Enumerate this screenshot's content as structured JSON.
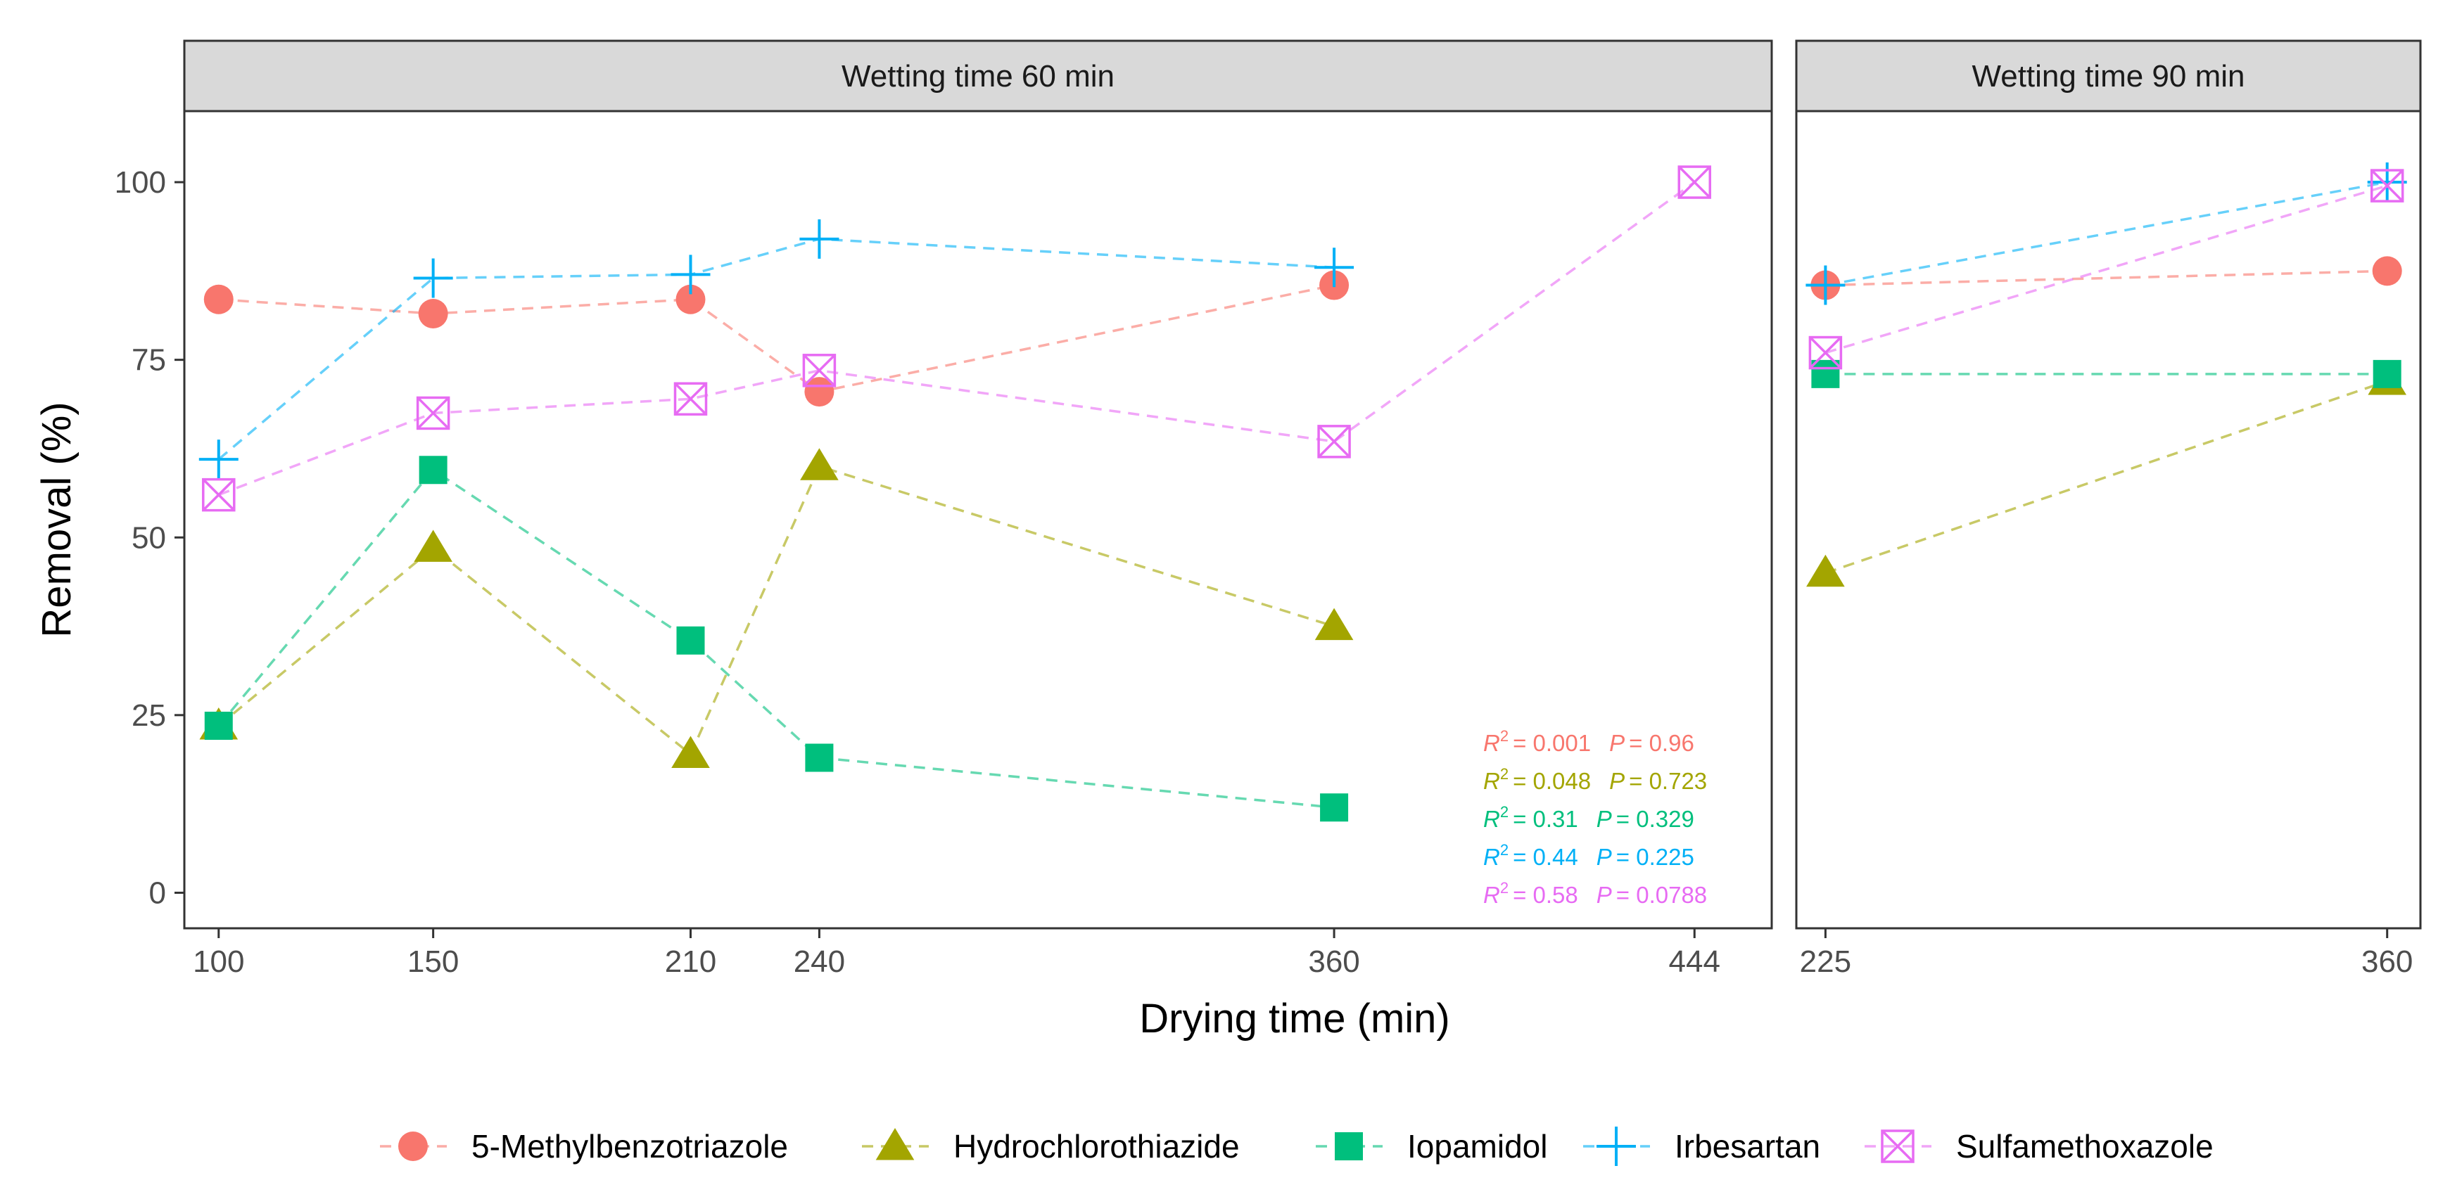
{
  "chart_data": {
    "type": "line",
    "xlabel": "Drying time (min)",
    "ylabel": "Removal (%)",
    "ylim": [
      -5,
      110
    ],
    "yticks": [
      0,
      25,
      50,
      75,
      100
    ],
    "grid": false,
    "legend_position": "bottom",
    "series_styles": [
      {
        "name": "5-Methylbenzotriazole",
        "color": "#F8766D",
        "marker": "circle"
      },
      {
        "name": "Hydrochlorothiazide",
        "color": "#A3A500",
        "marker": "triangle"
      },
      {
        "name": "Iopamidol",
        "color": "#00BF7D",
        "marker": "square"
      },
      {
        "name": "Irbesartan",
        "color": "#00B0F6",
        "marker": "plus"
      },
      {
        "name": "Sulfamethoxazole",
        "color": "#E76BF3",
        "marker": "boxx"
      }
    ],
    "panels": [
      {
        "title": "Wetting time 60 min",
        "xlim": [
          92,
          462
        ],
        "xticks": [
          100,
          150,
          210,
          240,
          360,
          444
        ],
        "series": [
          {
            "name": "5-Methylbenzotriazole",
            "x": [
              100,
              150,
              210,
              240,
              360
            ],
            "values": [
              83.5,
              81.5,
              83.5,
              70.5,
              85.5
            ]
          },
          {
            "name": "Hydrochlorothiazide",
            "x": [
              100,
              150,
              210,
              240,
              360
            ],
            "values": [
              23.5,
              48.5,
              19.5,
              60,
              37.5
            ]
          },
          {
            "name": "Iopamidol",
            "x": [
              100,
              150,
              210,
              240,
              360
            ],
            "values": [
              23.5,
              59.5,
              35.5,
              19,
              12
            ]
          },
          {
            "name": "Irbesartan",
            "x": [
              100,
              150,
              210,
              240,
              360
            ],
            "values": [
              61,
              86.5,
              87,
              92,
              88
            ]
          },
          {
            "name": "Sulfamethoxazole",
            "x": [
              100,
              150,
              210,
              240,
              360,
              444
            ],
            "values": [
              56,
              67.5,
              69.5,
              73.5,
              63.5,
              100
            ]
          }
        ],
        "annotations": [
          {
            "series": "5-Methylbenzotriazole",
            "r2_label": "R",
            "r2_value": "= 0.001",
            "p_label": "P",
            "p_value": "= 0.96"
          },
          {
            "series": "Hydrochlorothiazide",
            "r2_label": "R",
            "r2_value": "= 0.048",
            "p_label": "P",
            "p_value": "= 0.723"
          },
          {
            "series": "Iopamidol",
            "r2_label": "R",
            "r2_value": "= 0.31",
            "p_label": "P",
            "p_value": "= 0.329"
          },
          {
            "series": "Irbesartan",
            "r2_label": "R",
            "r2_value": "= 0.44",
            "p_label": "P",
            "p_value": "= 0.225"
          },
          {
            "series": "Sulfamethoxazole",
            "r2_label": "R",
            "r2_value": "= 0.58",
            "p_label": "P",
            "p_value": "= 0.0788"
          }
        ]
      },
      {
        "title": "Wetting time 90 min",
        "xlim": [
          218,
          368
        ],
        "xticks": [
          225,
          360
        ],
        "series": [
          {
            "name": "5-Methylbenzotriazole",
            "x": [
              225,
              360
            ],
            "values": [
              85.5,
              87.5
            ]
          },
          {
            "name": "Hydrochlorothiazide",
            "x": [
              225,
              360
            ],
            "values": [
              45,
              72
            ]
          },
          {
            "name": "Iopamidol",
            "x": [
              225,
              360
            ],
            "values": [
              73,
              73
            ]
          },
          {
            "name": "Irbesartan",
            "x": [
              225,
              360
            ],
            "values": [
              85.5,
              100
            ]
          },
          {
            "name": "Sulfamethoxazole",
            "x": [
              225,
              360
            ],
            "values": [
              76,
              99.5
            ]
          }
        ],
        "annotations": []
      }
    ]
  }
}
